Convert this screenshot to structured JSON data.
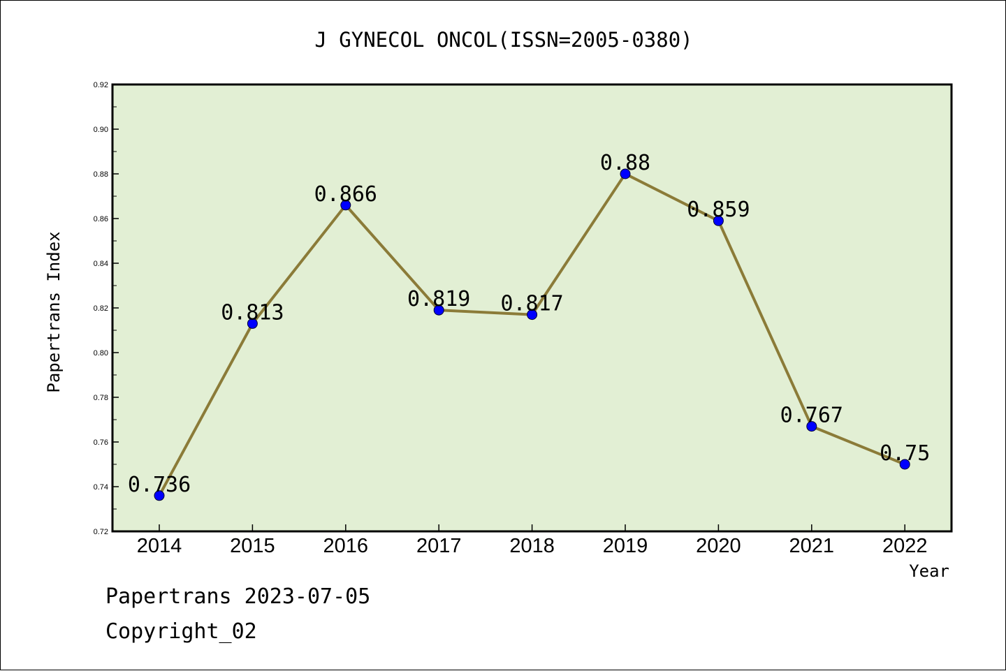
{
  "chart_data": {
    "type": "line",
    "title": "J GYNECOL ONCOL(ISSN=2005-0380)",
    "xlabel": "Year",
    "ylabel": "Papertrans Index",
    "categories": [
      "2014",
      "2015",
      "2016",
      "2017",
      "2018",
      "2019",
      "2020",
      "2021",
      "2022"
    ],
    "values": [
      0.736,
      0.813,
      0.866,
      0.819,
      0.817,
      0.88,
      0.859,
      0.767,
      0.75
    ],
    "data_labels": [
      "0.736",
      "0.813",
      "0.866",
      "0.819",
      "0.817",
      "0.88",
      "0.859",
      "0.767",
      "0.75"
    ],
    "ylim": [
      0.72,
      0.92
    ],
    "yticks": [
      "0.72",
      "0.74",
      "0.76",
      "0.78",
      "0.80",
      "0.82",
      "0.84",
      "0.86",
      "0.88",
      "0.90",
      "0.92"
    ],
    "grid": false,
    "legend": "none",
    "colors": {
      "plot_background": "#e2efd4",
      "line": "#8b7b38",
      "marker": "#0000ff"
    }
  },
  "footer": {
    "source": "Papertrans 2023-07-05",
    "copyright": "Copyright_02"
  }
}
